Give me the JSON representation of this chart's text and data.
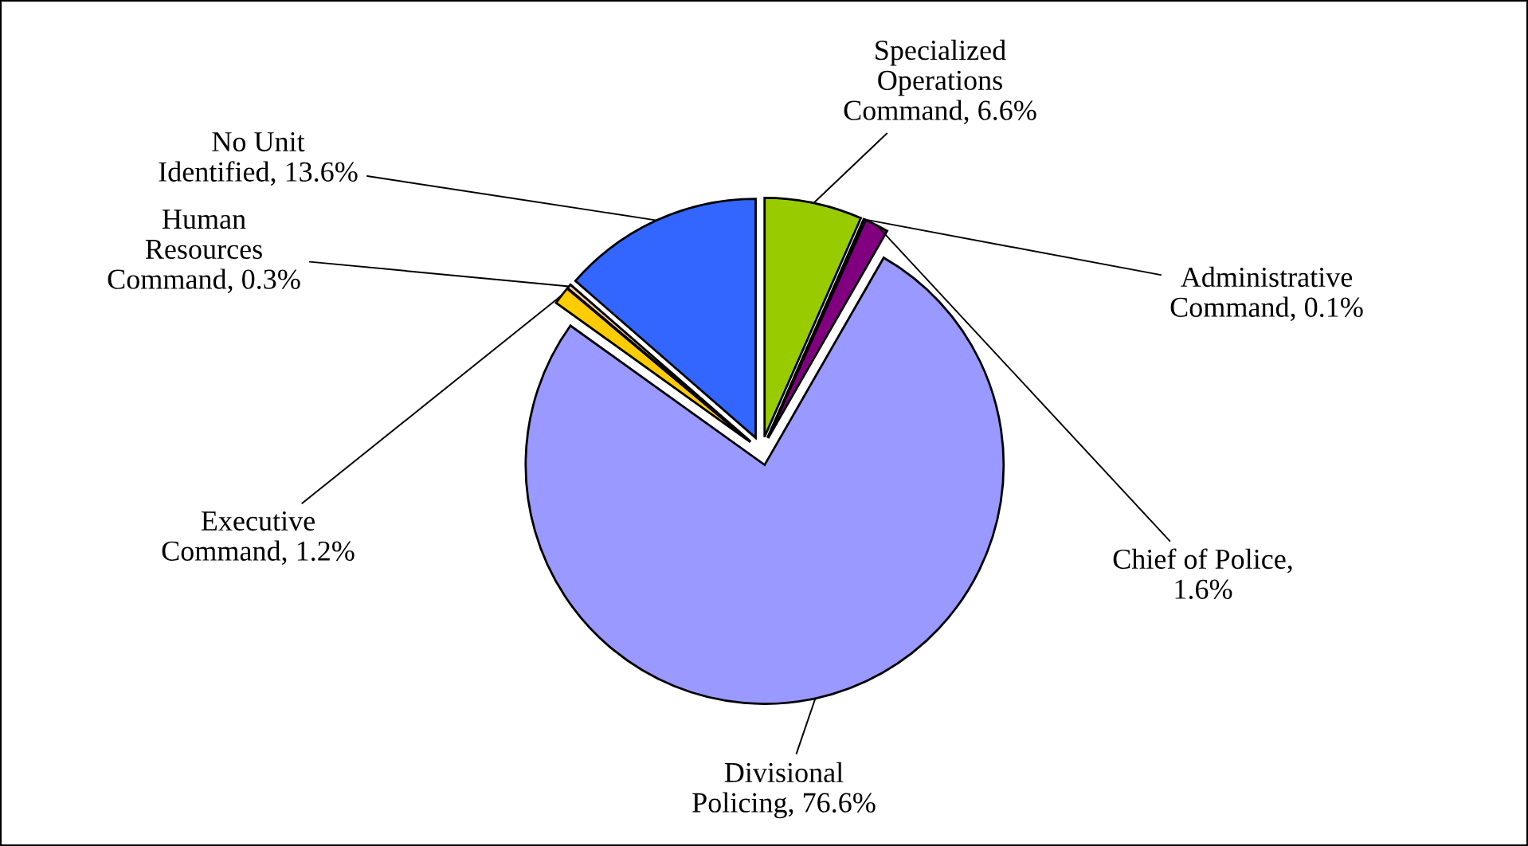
{
  "chart_data": {
    "type": "pie",
    "categories": [
      "Specialized Operations Command, 6.6%",
      "Administrative Command, 0.1%",
      "Chief of Police, 1.6%",
      "Divisional Policing, 76.6%",
      "Executive Command, 1.2%",
      "Human Resources Command, 0.3%",
      "No Unit Identified, 13.6%"
    ],
    "values": [
      6.6,
      0.1,
      1.6,
      76.6,
      1.2,
      0.3,
      13.6
    ],
    "colors": [
      "#99cc00",
      "#ffffcc",
      "#800080",
      "#9999ff",
      "#ffcc00",
      "#ffcc99",
      "#3366ff"
    ],
    "legend": false
  }
}
